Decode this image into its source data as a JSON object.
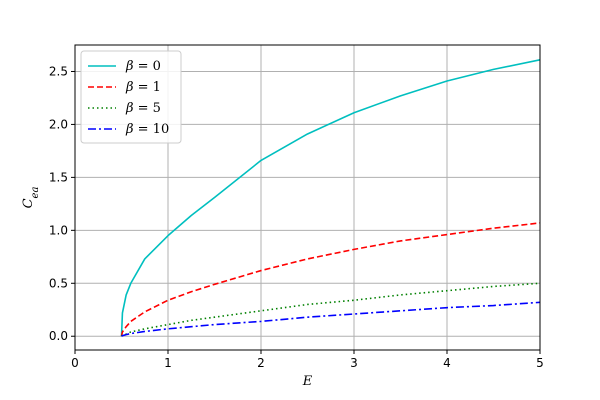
{
  "chart_data": {
    "type": "line",
    "title": "",
    "xlabel": "E",
    "ylabel_main": "C",
    "ylabel_sub": "ea",
    "xlim": [
      0,
      5
    ],
    "ylim": [
      -0.13,
      2.75
    ],
    "xticks": [
      0,
      1,
      2,
      3,
      4,
      5
    ],
    "xtick_labels": [
      "0",
      "1",
      "2",
      "3",
      "4",
      "5"
    ],
    "yticks": [
      0.0,
      0.5,
      1.0,
      1.5,
      2.0,
      2.5
    ],
    "ytick_labels": [
      "0.0",
      "0.5",
      "1.0",
      "1.5",
      "2.0",
      "2.5"
    ],
    "grid": true,
    "legend_position": "top-left",
    "x": [
      0.5,
      0.51,
      0.55,
      0.6,
      0.75,
      1.0,
      1.25,
      1.5,
      2.0,
      2.5,
      3.0,
      3.5,
      4.0,
      4.5,
      5.0
    ],
    "series": [
      {
        "name": "β = 0",
        "color": "#00bfbf",
        "dash": "solid",
        "values": [
          0.0,
          0.22,
          0.39,
          0.5,
          0.73,
          0.95,
          1.14,
          1.31,
          1.66,
          1.91,
          2.11,
          2.27,
          2.41,
          2.52,
          2.61
        ]
      },
      {
        "name": "β = 1",
        "color": "#ff0000",
        "dash": "dashed",
        "values": [
          0.0,
          0.04,
          0.09,
          0.14,
          0.23,
          0.34,
          0.42,
          0.49,
          0.62,
          0.73,
          0.82,
          0.9,
          0.96,
          1.02,
          1.07
        ]
      },
      {
        "name": "β = 5",
        "color": "#008000",
        "dash": "dotted",
        "values": [
          0.0,
          0.01,
          0.02,
          0.04,
          0.07,
          0.11,
          0.15,
          0.18,
          0.24,
          0.3,
          0.34,
          0.39,
          0.43,
          0.47,
          0.5
        ]
      },
      {
        "name": "β = 10",
        "color": "#0000ff",
        "dash": "dashdot",
        "values": [
          0.0,
          0.005,
          0.015,
          0.025,
          0.045,
          0.07,
          0.09,
          0.11,
          0.14,
          0.18,
          0.21,
          0.24,
          0.27,
          0.29,
          0.32
        ]
      }
    ],
    "legend_entries": [
      {
        "symbol": "β",
        "equals": "= 0"
      },
      {
        "symbol": "β",
        "equals": "= 1"
      },
      {
        "symbol": "β",
        "equals": "= 5"
      },
      {
        "symbol": "β",
        "equals": "= 10"
      }
    ]
  }
}
